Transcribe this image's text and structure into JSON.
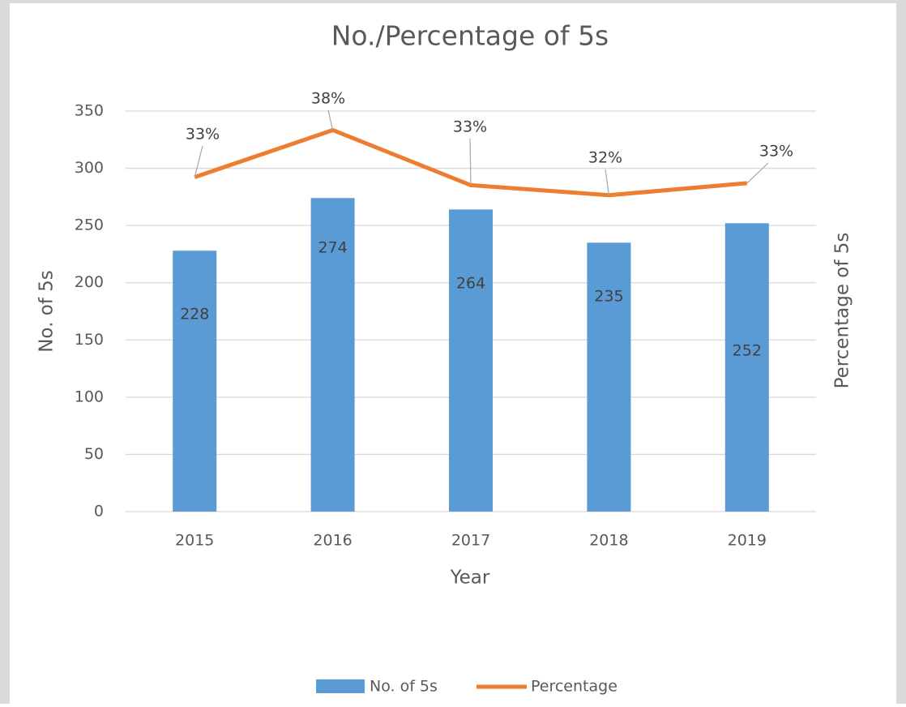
{
  "chart_data": {
    "type": "bar-line",
    "title": "No./Percentage of 5s",
    "x_label": "Year",
    "y_label": "No. of 5s",
    "y2_label": "Percentage of 5s",
    "categories": [
      "2015",
      "2016",
      "2017",
      "2018",
      "2019"
    ],
    "series": [
      {
        "name": "No. of 5s",
        "type": "bar",
        "color": "#5b9bd5",
        "values": [
          228,
          274,
          264,
          235,
          252
        ]
      },
      {
        "name": "Percentage",
        "type": "line",
        "axis": "y2",
        "color": "#ed7d31",
        "values": [
          33.4,
          38.1,
          32.6,
          31.6,
          32.8
        ],
        "value_labels": [
          "33%",
          "38%",
          "33%",
          "32%",
          "33%"
        ]
      }
    ],
    "ylim": [
      0,
      350
    ],
    "yticks": [
      0,
      50,
      100,
      150,
      200,
      250,
      300,
      350
    ],
    "y2lim": [
      0,
      40
    ],
    "grid": true,
    "legend": "bottom"
  }
}
